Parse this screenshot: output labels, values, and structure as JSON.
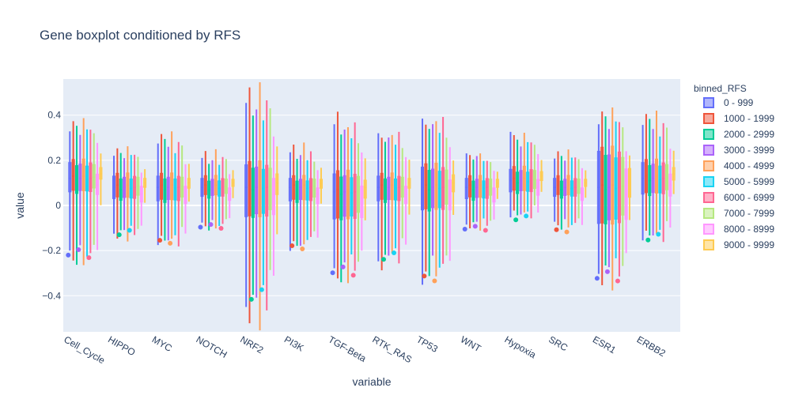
{
  "chart_data": {
    "type": "box",
    "title": "Gene boxplot conditioned by RFS",
    "xlabel": "variable",
    "ylabel": "value",
    "ylim": [
      -0.56,
      0.56
    ],
    "yticks": [
      -0.4,
      -0.2,
      0,
      0.2,
      0.4
    ],
    "ytick_labels": [
      "−0.4",
      "−0.2",
      "0",
      "0.2",
      "0.4"
    ],
    "grid": true,
    "legend_title": "binned_RFS",
    "legend_position": "right",
    "categories": [
      "Cell_Cycle",
      "HIPPO",
      "MYC",
      "NOTCH",
      "NRF2",
      "PI3K",
      "TGF-Beta",
      "RTK_RAS",
      "TP53",
      "WNT",
      "Hypoxia",
      "SRC",
      "ESR1",
      "ERBB2"
    ],
    "series": [
      {
        "name": "0 - 999",
        "color": "#636efa"
      },
      {
        "name": "1000 - 1999",
        "color": "#EF553B"
      },
      {
        "name": "2000 - 2999",
        "color": "#00cc96"
      },
      {
        "name": "3000 - 3999",
        "color": "#ab63fa"
      },
      {
        "name": "4000 - 4999",
        "color": "#FFA15A"
      },
      {
        "name": "5000 - 5999",
        "color": "#19d3f3"
      },
      {
        "name": "6000 - 6999",
        "color": "#FF6692"
      },
      {
        "name": "7000 - 7999",
        "color": "#B6E880"
      },
      {
        "name": "8000 - 8999",
        "color": "#FF97FF"
      },
      {
        "name": "9000 - 9999",
        "color": "#FECB52"
      }
    ],
    "box_summary": [
      {
        "category": "Cell_Cycle",
        "min": -0.28,
        "q1": 0.06,
        "median": 0.12,
        "q3": 0.19,
        "max": 0.38
      },
      {
        "category": "HIPPO",
        "min": -0.15,
        "q1": 0.03,
        "median": 0.08,
        "q3": 0.13,
        "max": 0.25
      },
      {
        "category": "MYC",
        "min": -0.18,
        "q1": 0.02,
        "median": 0.08,
        "q3": 0.13,
        "max": 0.31
      },
      {
        "category": "NOTCH",
        "min": -0.11,
        "q1": 0.04,
        "median": 0.08,
        "q3": 0.12,
        "max": 0.23
      },
      {
        "category": "NRF2",
        "min": -0.5,
        "q1": -0.05,
        "median": 0.08,
        "q3": 0.18,
        "max": 0.5
      },
      {
        "category": "PI3K",
        "min": -0.2,
        "q1": 0.02,
        "median": 0.08,
        "q3": 0.12,
        "max": 0.25
      },
      {
        "category": "TGF-Beta",
        "min": -0.34,
        "q1": -0.06,
        "median": 0.06,
        "q3": 0.14,
        "max": 0.38
      },
      {
        "category": "RTK_RAS",
        "min": -0.27,
        "q1": 0.02,
        "median": 0.08,
        "q3": 0.13,
        "max": 0.33
      },
      {
        "category": "TP53",
        "min": -0.34,
        "q1": -0.02,
        "median": 0.08,
        "q3": 0.17,
        "max": 0.39
      },
      {
        "category": "WNT",
        "min": -0.11,
        "q1": 0.03,
        "median": 0.08,
        "q3": 0.12,
        "max": 0.23
      },
      {
        "category": "Hypoxia",
        "min": -0.06,
        "q1": 0.06,
        "median": 0.11,
        "q3": 0.16,
        "max": 0.32
      },
      {
        "category": "SRC",
        "min": -0.11,
        "q1": 0.04,
        "median": 0.08,
        "q3": 0.12,
        "max": 0.24
      },
      {
        "category": "ESR1",
        "min": -0.35,
        "q1": -0.08,
        "median": 0.08,
        "q3": 0.24,
        "max": 0.42
      },
      {
        "category": "ERBB2",
        "min": -0.16,
        "q1": 0.05,
        "median": 0.12,
        "q3": 0.19,
        "max": 0.4
      }
    ]
  }
}
